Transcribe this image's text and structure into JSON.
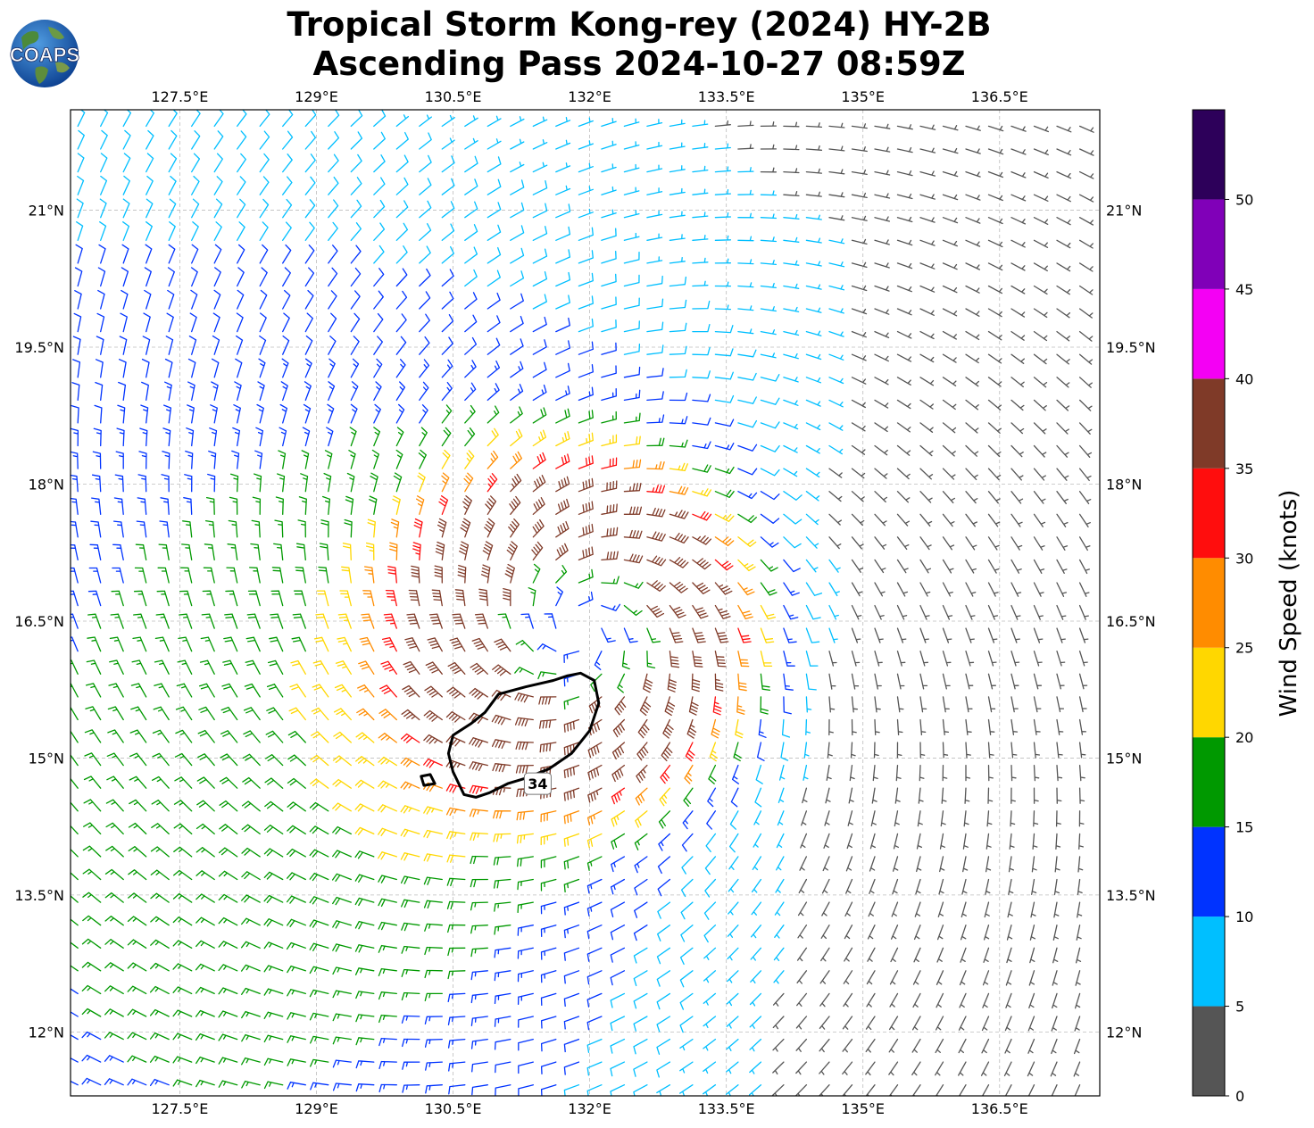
{
  "title": {
    "line1": "Tropical Storm Kong-rey (2024) HY-2B",
    "line2": "Ascending Pass 2024-10-27 08:59Z"
  },
  "logo": {
    "text": "COAPS",
    "icon": "globe-icon"
  },
  "map": {
    "lon_range": [
      126.3,
      137.6
    ],
    "lat_range": [
      11.3,
      22.1
    ],
    "lon_ticks": [
      {
        "value": 127.5,
        "label": "127.5°E"
      },
      {
        "value": 129.0,
        "label": "129°E"
      },
      {
        "value": 130.5,
        "label": "130.5°E"
      },
      {
        "value": 132.0,
        "label": "132°E"
      },
      {
        "value": 133.5,
        "label": "133.5°E"
      },
      {
        "value": 135.0,
        "label": "135°E"
      },
      {
        "value": 136.5,
        "label": "136.5°E"
      }
    ],
    "lat_ticks": [
      {
        "value": 21.0,
        "label": "21°N"
      },
      {
        "value": 19.5,
        "label": "19.5°N"
      },
      {
        "value": 18.0,
        "label": "18°N"
      },
      {
        "value": 16.5,
        "label": "16.5°N"
      },
      {
        "value": 15.0,
        "label": "15°N"
      },
      {
        "value": 13.5,
        "label": "13.5°N"
      },
      {
        "value": 12.0,
        "label": "12°N"
      }
    ],
    "grid": true,
    "storm_center": {
      "lon": 131.9,
      "lat": 16.4
    },
    "contour": {
      "label": "34",
      "units": "knots",
      "points": [
        [
          131.0,
          15.7
        ],
        [
          131.3,
          15.78
        ],
        [
          131.6,
          15.85
        ],
        [
          131.75,
          15.9
        ],
        [
          131.9,
          15.93
        ],
        [
          132.05,
          15.85
        ],
        [
          132.1,
          15.6
        ],
        [
          132.0,
          15.3
        ],
        [
          131.8,
          15.05
        ],
        [
          131.55,
          14.88
        ],
        [
          131.3,
          14.78
        ],
        [
          131.1,
          14.72
        ],
        [
          130.9,
          14.62
        ],
        [
          130.75,
          14.57
        ],
        [
          130.62,
          14.6
        ],
        [
          130.5,
          14.85
        ],
        [
          130.45,
          15.05
        ],
        [
          130.5,
          15.25
        ],
        [
          130.7,
          15.38
        ],
        [
          130.85,
          15.5
        ]
      ],
      "islet": [
        [
          130.15,
          14.8
        ],
        [
          130.25,
          14.82
        ],
        [
          130.3,
          14.72
        ],
        [
          130.18,
          14.7
        ]
      ]
    }
  },
  "colorbar": {
    "label": "Wind Speed (knots)",
    "range": [
      0,
      55
    ],
    "bins": [
      {
        "from": 0,
        "to": 5,
        "color": "#555555"
      },
      {
        "from": 5,
        "to": 10,
        "color": "#00bfff"
      },
      {
        "from": 10,
        "to": 15,
        "color": "#0033ff"
      },
      {
        "from": 15,
        "to": 20,
        "color": "#009900"
      },
      {
        "from": 20,
        "to": 25,
        "color": "#ffd700"
      },
      {
        "from": 25,
        "to": 30,
        "color": "#ff8c00"
      },
      {
        "from": 30,
        "to": 35,
        "color": "#ff0d0d"
      },
      {
        "from": 35,
        "to": 40,
        "color": "#7f3a28"
      },
      {
        "from": 40,
        "to": 45,
        "color": "#f400f4"
      },
      {
        "from": 45,
        "to": 50,
        "color": "#8000b8"
      },
      {
        "from": 50,
        "to": 55,
        "color": "#2d005a"
      }
    ],
    "ticks": [
      {
        "value": 0,
        "label": "0"
      },
      {
        "value": 5,
        "label": "5"
      },
      {
        "value": 10,
        "label": "10"
      },
      {
        "value": 15,
        "label": "15"
      },
      {
        "value": 20,
        "label": "20"
      },
      {
        "value": 25,
        "label": "25"
      },
      {
        "value": 30,
        "label": "30"
      },
      {
        "value": 35,
        "label": "35"
      },
      {
        "value": 40,
        "label": "40"
      },
      {
        "value": 45,
        "label": "45"
      },
      {
        "value": 50,
        "label": "50"
      }
    ]
  }
}
